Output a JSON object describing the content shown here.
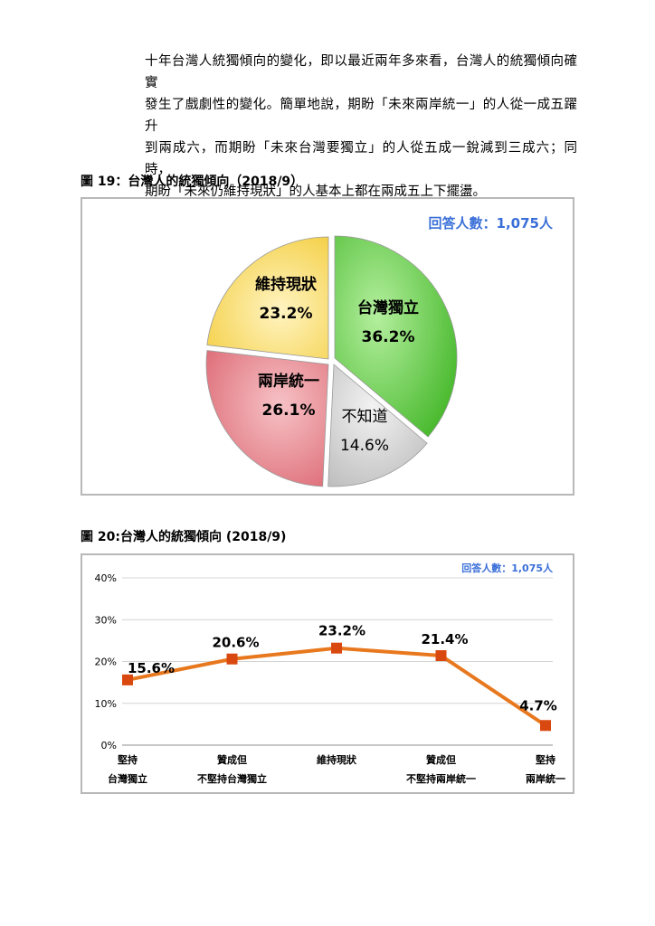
{
  "paragraph": [
    "十年台灣人統獨傾向的變化，即以最近兩年多來看，台灣人的統獨傾向確實",
    "發生了戲劇性的變化。簡單地說，期盼「未來兩岸統一」的人從一成五躍升",
    "到兩成六，而期盼「未來台灣要獨立」的人從五成一銳減到三成六；同時，",
    "期盼「未來仍維持現狀」的人基本上都在兩成五上下擺盪。"
  ],
  "chart_data": [
    {
      "type": "pie",
      "title": "圖 19：台灣人的統獨傾向（2018/9）",
      "annotation": "回答人數：1,075人",
      "slices": [
        {
          "label": "台灣獨立",
          "value": 36.2,
          "value_label": "36.2%",
          "color": "#6ccd4f"
        },
        {
          "label": "不知道",
          "value": 14.6,
          "value_label": "14.6%",
          "color": "#d2d2d2"
        },
        {
          "label": "兩岸統一",
          "value": 26.1,
          "value_label": "26.1%",
          "color": "#e8828a"
        },
        {
          "label": "維持現狀",
          "value": 23.2,
          "value_label": "23.2%",
          "color": "#f8dc62"
        }
      ]
    },
    {
      "type": "line",
      "title": "圖 20:台灣人的統獨傾向 (2018/9)",
      "annotation": "回答人數：1,075人",
      "categories": [
        [
          "堅持",
          "台灣獨立"
        ],
        [
          "贊成但",
          "不堅持台灣獨立"
        ],
        [
          "維持現狀"
        ],
        [
          "贊成但",
          "不堅持兩岸統一"
        ],
        [
          "堅持",
          "兩岸統一"
        ]
      ],
      "values": [
        15.6,
        20.6,
        23.2,
        21.4,
        4.7
      ],
      "value_labels": [
        "15.6%",
        "20.6%",
        "23.2%",
        "21.4%",
        "4.7%"
      ],
      "yticks": [
        "0%",
        "10%",
        "20%",
        "30%",
        "40%"
      ],
      "ylim": [
        0,
        40
      ],
      "grid": "horizontal",
      "line_color": "#e8781e",
      "marker_color": "#d9480f"
    }
  ]
}
